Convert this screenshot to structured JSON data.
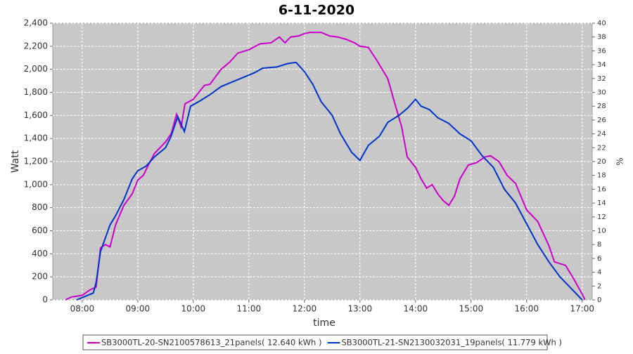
{
  "chart_data": {
    "type": "line",
    "title": "6-11-2020",
    "x_label": "time",
    "y_label": "Watt",
    "y2_label": "%",
    "xlim": [
      7.47,
      17.18
    ],
    "xticks": [
      {
        "value": 8,
        "label": "08:00"
      },
      {
        "value": 9,
        "label": "09:00"
      },
      {
        "value": 10,
        "label": "10:00"
      },
      {
        "value": 11,
        "label": "11:00"
      },
      {
        "value": 12,
        "label": "12:00"
      },
      {
        "value": 13,
        "label": "13:00"
      },
      {
        "value": 14,
        "label": "14:00"
      },
      {
        "value": 15,
        "label": "15:00"
      },
      {
        "value": 16,
        "label": "16:00"
      },
      {
        "value": 17,
        "label": "17:00"
      }
    ],
    "ylim": [
      0,
      2400
    ],
    "yticks": [
      0,
      200,
      400,
      600,
      800,
      {
        "value": 1000,
        "label": "1,000"
      },
      {
        "value": 1200,
        "label": "1,200"
      },
      {
        "value": 1400,
        "label": "1,400"
      },
      {
        "value": 1600,
        "label": "1,600"
      },
      {
        "value": 1800,
        "label": "1,800"
      },
      {
        "value": 2000,
        "label": "2,000"
      },
      {
        "value": 2200,
        "label": "2,200"
      },
      {
        "value": 2400,
        "label": "2,400"
      }
    ],
    "y2lim": [
      0,
      40
    ],
    "y2ticks": [
      0,
      2,
      4,
      6,
      8,
      10,
      12,
      14,
      16,
      18,
      20,
      22,
      24,
      26,
      28,
      30,
      32,
      34,
      36,
      38,
      40
    ],
    "grid": true,
    "series": [
      {
        "name": "SB3000TL-20-SN2100578613_21panels( 12.640 kWh )",
        "color": "#cc00cc",
        "x": [
          7.7,
          7.8,
          8.0,
          8.15,
          8.25,
          8.33,
          8.42,
          8.5,
          8.6,
          8.75,
          8.9,
          9.0,
          9.1,
          9.2,
          9.3,
          9.5,
          9.6,
          9.7,
          9.78,
          9.85,
          10.0,
          10.2,
          10.3,
          10.5,
          10.65,
          10.8,
          11.0,
          11.2,
          11.4,
          11.55,
          11.65,
          11.75,
          11.9,
          12.0,
          12.1,
          12.3,
          12.45,
          12.6,
          12.75,
          12.9,
          13.0,
          13.15,
          13.3,
          13.5,
          13.6,
          13.75,
          13.85,
          14.0,
          14.1,
          14.2,
          14.3,
          14.4,
          14.5,
          14.6,
          14.7,
          14.8,
          14.95,
          15.1,
          15.25,
          15.35,
          15.5,
          15.65,
          15.8,
          16.0,
          16.2,
          16.4,
          16.5,
          16.7,
          16.85,
          17.0,
          17.05
        ],
        "values": [
          0,
          25,
          40,
          90,
          110,
          450,
          480,
          460,
          650,
          820,
          920,
          1040,
          1080,
          1180,
          1270,
          1370,
          1440,
          1610,
          1500,
          1700,
          1740,
          1860,
          1870,
          2000,
          2060,
          2140,
          2170,
          2220,
          2230,
          2280,
          2230,
          2280,
          2290,
          2310,
          2320,
          2320,
          2290,
          2280,
          2260,
          2230,
          2200,
          2190,
          2080,
          1920,
          1750,
          1500,
          1240,
          1150,
          1050,
          970,
          1000,
          920,
          860,
          820,
          900,
          1050,
          1170,
          1190,
          1240,
          1250,
          1200,
          1080,
          1010,
          780,
          680,
          470,
          330,
          300,
          180,
          50,
          0
        ]
      },
      {
        "name": "SB3000TL-21-SN2130032031_19panels( 11.779 kWh )",
        "color": "#0033cc",
        "x": [
          7.9,
          8.0,
          8.2,
          8.25,
          8.33,
          8.5,
          8.6,
          8.75,
          8.9,
          9.0,
          9.15,
          9.3,
          9.5,
          9.6,
          9.72,
          9.84,
          9.95,
          10.1,
          10.3,
          10.5,
          10.7,
          10.9,
          11.1,
          11.25,
          11.5,
          11.7,
          11.85,
          12.0,
          12.15,
          12.3,
          12.5,
          12.65,
          12.85,
          13.0,
          13.15,
          13.35,
          13.5,
          13.7,
          13.85,
          14.0,
          14.1,
          14.25,
          14.4,
          14.6,
          14.8,
          15.0,
          15.2,
          15.4,
          15.6,
          15.8,
          16.0,
          16.2,
          16.4,
          16.6,
          16.8,
          17.0
        ],
        "values": [
          0,
          20,
          60,
          150,
          420,
          650,
          730,
          870,
          1050,
          1120,
          1160,
          1240,
          1320,
          1420,
          1590,
          1460,
          1680,
          1720,
          1780,
          1850,
          1890,
          1930,
          1970,
          2010,
          2020,
          2050,
          2060,
          1980,
          1870,
          1720,
          1600,
          1440,
          1280,
          1210,
          1340,
          1420,
          1540,
          1600,
          1660,
          1740,
          1680,
          1650,
          1580,
          1530,
          1440,
          1380,
          1250,
          1150,
          960,
          840,
          660,
          480,
          330,
          200,
          100,
          0
        ]
      }
    ]
  }
}
